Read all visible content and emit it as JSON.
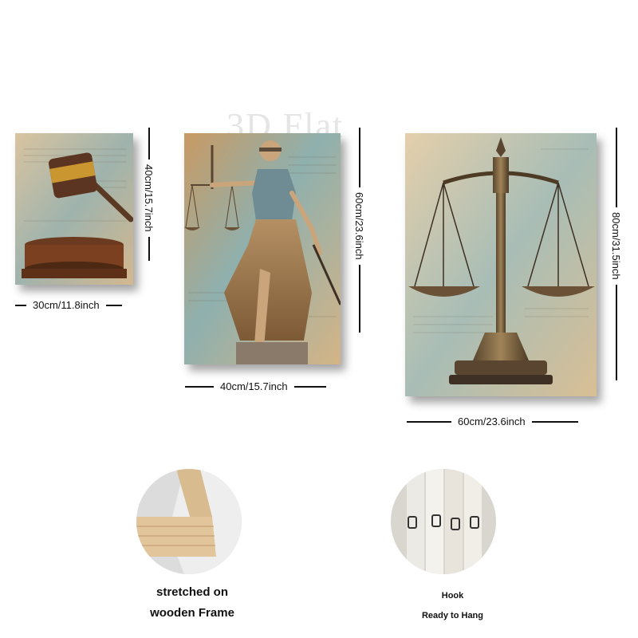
{
  "watermark": "3D Flat",
  "panels": [
    {
      "name": "gavel-panel",
      "width_label": "30cm/11.8inch",
      "height_label": "40cm/15.7inch"
    },
    {
      "name": "lady-justice-panel",
      "width_label": "40cm/15.7inch",
      "height_label": "60cm/23.6inch"
    },
    {
      "name": "scales-panel",
      "width_label": "60cm/23.6inch",
      "height_label": "80cm/31.5inch"
    }
  ],
  "features": {
    "frame": {
      "line1": "stretched on",
      "line2": "wooden Frame"
    },
    "hook": {
      "line1": "Hook",
      "line2": "Ready to Hang"
    }
  },
  "colors": {
    "parchment": "#d9c4a0",
    "teal": "#7fa3a3",
    "bronze": "#8a6a3e",
    "wood": "#d8bb8e"
  }
}
